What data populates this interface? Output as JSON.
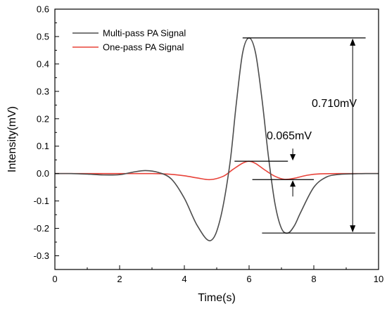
{
  "chart_data": {
    "type": "line",
    "xlabel": "Time(s)",
    "ylabel": "Intensity(mV)",
    "xlim": [
      0,
      10
    ],
    "ylim": [
      -0.35,
      0.6
    ],
    "xticks": [
      0,
      2,
      4,
      6,
      8,
      10
    ],
    "xtick_labels": [
      "0",
      "2",
      "4",
      "6",
      "8",
      "10"
    ],
    "yticks": [
      -0.3,
      -0.2,
      -0.1,
      0.0,
      0.1,
      0.2,
      0.3,
      0.4,
      0.5,
      0.6
    ],
    "ytick_labels": [
      "-0.3",
      "-0.2",
      "-0.1",
      "0.0",
      "0.1",
      "0.2",
      "0.3",
      "0.4",
      "0.5",
      "0.6"
    ],
    "grid": false,
    "legend_position": "top-left",
    "series": [
      {
        "name": "Multi-pass PA Signal",
        "color": "#4d4d4d",
        "x": [
          0,
          0.5,
          1,
          1.5,
          2,
          2.4,
          2.8,
          3.2,
          3.6,
          4,
          4.4,
          4.8,
          5.1,
          5.4,
          5.6,
          5.8,
          6,
          6.2,
          6.4,
          6.6,
          6.8,
          7,
          7.2,
          7.4,
          7.6,
          8,
          8.4,
          8.8,
          9.2,
          9.6,
          10
        ],
        "y": [
          0,
          0,
          -0.002,
          -0.005,
          -0.004,
          0.005,
          0.011,
          0.004,
          -0.02,
          -0.09,
          -0.19,
          -0.245,
          -0.17,
          0.03,
          0.25,
          0.44,
          0.495,
          0.44,
          0.27,
          0.06,
          -0.11,
          -0.2,
          -0.217,
          -0.19,
          -0.14,
          -0.05,
          -0.012,
          -0.003,
          -0.001,
          0,
          0
        ]
      },
      {
        "name": "One-pass PA Signal",
        "color": "#e8433a",
        "x": [
          0,
          1,
          2,
          3,
          3.5,
          4,
          4.4,
          4.8,
          5.2,
          5.5,
          5.8,
          6,
          6.2,
          6.5,
          6.8,
          7.1,
          7.4,
          7.8,
          8.2,
          9,
          10
        ],
        "y": [
          0,
          0,
          0,
          0,
          -0.002,
          -0.008,
          -0.016,
          -0.022,
          -0.01,
          0.015,
          0.038,
          0.045,
          0.037,
          0.012,
          -0.01,
          -0.021,
          -0.017,
          -0.006,
          -0.001,
          0,
          0
        ]
      }
    ],
    "annotations": [
      {
        "label": "0.710mV",
        "levels": [
          {
            "x_from": 5.8,
            "x_to": 9.6,
            "y": 0.495
          },
          {
            "x_from": 6.4,
            "x_to": 9.9,
            "y": -0.217
          }
        ],
        "arrow_x": 9.2
      },
      {
        "label": "0.065mV",
        "levels": [
          {
            "x_from": 5.55,
            "x_to": 7.2,
            "y": 0.045
          },
          {
            "x_from": 6.1,
            "x_to": 8.0,
            "y": -0.022
          }
        ],
        "arrow_x": 7.35
      }
    ]
  }
}
